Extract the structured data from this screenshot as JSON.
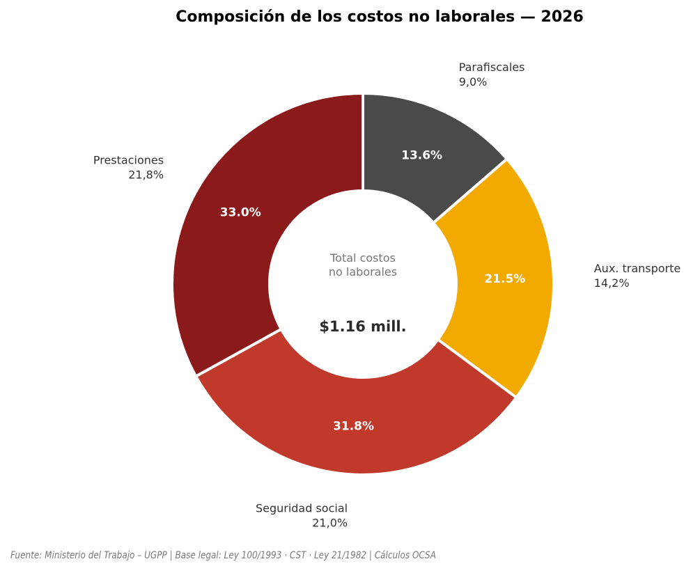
{
  "chart_data": {
    "type": "pie",
    "variant": "donut",
    "title": "Composición de los costos no laborales — 2026",
    "start_angle_deg": 90,
    "direction": "clockwise",
    "slices": [
      {
        "name": "Parafiscales",
        "share_pct": 13.6,
        "inner_label": "13.6%",
        "outer_label": "9,0%",
        "color": "#4a4a4a"
      },
      {
        "name": "Aux. transporte",
        "share_pct": 21.5,
        "inner_label": "21.5%",
        "outer_label": "14,2%",
        "color": "#f2a900"
      },
      {
        "name": "Seguridad social",
        "share_pct": 31.8,
        "inner_label": "31.8%",
        "outer_label": "21,0%",
        "color": "#c0392b"
      },
      {
        "name": "Prestaciones",
        "share_pct": 33.0,
        "inner_label": "33.0%",
        "outer_label": "21,8%",
        "color": "#8b1a1a"
      }
    ],
    "center": {
      "caption_line1": "Total costos",
      "caption_line2": "no laborales",
      "value": "$1.16 mill."
    }
  },
  "footer": "Fuente: Ministerio del Trabajo – UGPP  |  Base legal: Ley 100/1993 · CST · Ley 21/1982  |  Cálculos OCSA"
}
